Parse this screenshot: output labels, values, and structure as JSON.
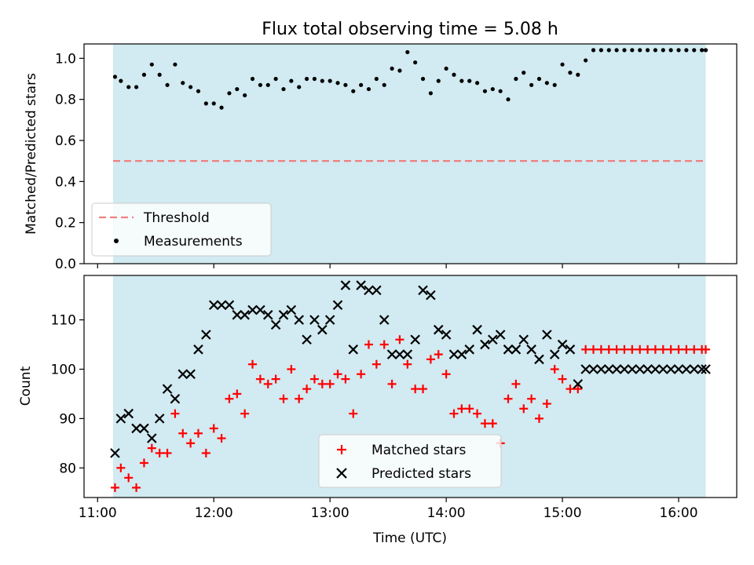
{
  "chart_data": [
    {
      "type": "scatter",
      "title": "Flux total observing time = 5.08 h",
      "ylabel": "Matched/Predicted stars",
      "xlabel": "",
      "ylim": [
        0.0,
        1.07
      ],
      "yticks": [
        "0.0",
        "0.2",
        "0.4",
        "0.6",
        "0.8",
        "1.0"
      ],
      "ytick_values": [
        0.0,
        0.2,
        0.4,
        0.6,
        0.8,
        1.0
      ],
      "xtick_labels_shown": false,
      "threshold": {
        "name": "Threshold",
        "value": 0.5,
        "color": "#f08080"
      },
      "observing_window": {
        "start": "11:08",
        "end": "16:14",
        "color": "#add8e6"
      },
      "legend_placement": "lower-left",
      "series": [
        {
          "name": "Measurements",
          "color": "#000000",
          "x": [
            "11:09",
            "11:12",
            "11:16",
            "11:20",
            "11:24",
            "11:28",
            "11:32",
            "11:36",
            "11:40",
            "11:44",
            "11:48",
            "11:52",
            "11:56",
            "12:00",
            "12:04",
            "12:08",
            "12:12",
            "12:16",
            "12:20",
            "12:24",
            "12:28",
            "12:32",
            "12:36",
            "12:40",
            "12:44",
            "12:48",
            "12:52",
            "12:56",
            "13:00",
            "13:04",
            "13:08",
            "13:12",
            "13:16",
            "13:20",
            "13:24",
            "13:28",
            "13:32",
            "13:36",
            "13:40",
            "13:44",
            "13:48",
            "13:52",
            "13:56",
            "14:00",
            "14:04",
            "14:08",
            "14:12",
            "14:16",
            "14:20",
            "14:24",
            "14:28",
            "14:32",
            "14:36",
            "14:40",
            "14:44",
            "14:48",
            "14:52",
            "14:56",
            "15:00",
            "15:04",
            "15:08",
            "15:12",
            "15:16",
            "15:20",
            "15:24",
            "15:28",
            "15:32",
            "15:36",
            "15:40",
            "15:44",
            "15:48",
            "15:52",
            "15:56",
            "16:00",
            "16:04",
            "16:08",
            "16:12",
            "16:14"
          ],
          "y": [
            0.91,
            0.89,
            0.86,
            0.86,
            0.92,
            0.97,
            0.92,
            0.87,
            0.97,
            0.88,
            0.86,
            0.84,
            0.78,
            0.78,
            0.76,
            0.83,
            0.85,
            0.82,
            0.9,
            0.87,
            0.87,
            0.9,
            0.85,
            0.89,
            0.86,
            0.9,
            0.9,
            0.89,
            0.89,
            0.88,
            0.87,
            0.84,
            0.87,
            0.85,
            0.9,
            0.87,
            0.95,
            0.94,
            1.03,
            0.98,
            0.9,
            0.83,
            0.89,
            0.95,
            0.92,
            0.89,
            0.89,
            0.88,
            0.84,
            0.85,
            0.84,
            0.8,
            0.9,
            0.93,
            0.87,
            0.9,
            0.88,
            0.87,
            0.97,
            0.93,
            0.92,
            0.99,
            1.04,
            1.04,
            1.04,
            1.04,
            1.04,
            1.04,
            1.04,
            1.04,
            1.04,
            1.04,
            1.04,
            1.04,
            1.04,
            1.04,
            1.04,
            1.04
          ]
        }
      ]
    },
    {
      "type": "scatter",
      "title": "",
      "ylabel": "Count",
      "xlabel": "Time (UTC)",
      "xlim": [
        "10:53",
        "16:30"
      ],
      "xticks": [
        "11:00",
        "12:00",
        "13:00",
        "14:00",
        "15:00",
        "16:00"
      ],
      "ylim": [
        74,
        119
      ],
      "yticks": [
        "80",
        "90",
        "100",
        "110"
      ],
      "ytick_values": [
        80,
        90,
        100,
        110
      ],
      "observing_window": {
        "start": "11:08",
        "end": "16:14",
        "color": "#add8e6"
      },
      "legend_placement": "lower-center",
      "series": [
        {
          "name": "Matched stars",
          "marker": "+",
          "color": "#ff0000",
          "x": [
            "11:09",
            "11:12",
            "11:16",
            "11:20",
            "11:24",
            "11:28",
            "11:32",
            "11:36",
            "11:40",
            "11:44",
            "11:48",
            "11:52",
            "11:56",
            "12:00",
            "12:04",
            "12:08",
            "12:12",
            "12:16",
            "12:20",
            "12:24",
            "12:28",
            "12:32",
            "12:36",
            "12:40",
            "12:44",
            "12:48",
            "12:52",
            "12:56",
            "13:00",
            "13:04",
            "13:08",
            "13:12",
            "13:16",
            "13:20",
            "13:24",
            "13:28",
            "13:32",
            "13:36",
            "13:40",
            "13:44",
            "13:48",
            "13:52",
            "13:56",
            "14:00",
            "14:04",
            "14:08",
            "14:12",
            "14:16",
            "14:20",
            "14:24",
            "14:28",
            "14:32",
            "14:36",
            "14:40",
            "14:44",
            "14:48",
            "14:52",
            "14:56",
            "15:00",
            "15:04",
            "15:08",
            "15:12",
            "15:16",
            "15:20",
            "15:24",
            "15:28",
            "15:32",
            "15:36",
            "15:40",
            "15:44",
            "15:48",
            "15:52",
            "15:56",
            "16:00",
            "16:04",
            "16:08",
            "16:12",
            "16:14"
          ],
          "y": [
            76,
            80,
            78,
            76,
            81,
            84,
            83,
            83,
            91,
            87,
            85,
            87,
            83,
            88,
            86,
            94,
            95,
            91,
            101,
            98,
            97,
            98,
            94,
            100,
            94,
            96,
            98,
            97,
            97,
            99,
            98,
            91,
            99,
            105,
            101,
            105,
            97,
            106,
            101,
            96,
            96,
            102,
            103,
            99,
            91,
            92,
            92,
            91,
            89,
            89,
            85,
            94,
            97,
            92,
            94,
            90,
            93,
            100,
            98,
            96,
            96,
            104,
            104,
            104,
            104,
            104,
            104,
            104,
            104,
            104,
            104,
            104,
            104,
            104,
            104,
            104,
            104,
            104
          ]
        },
        {
          "name": "Predicted stars",
          "marker": "x",
          "color": "#000000",
          "x": [
            "11:09",
            "11:12",
            "11:16",
            "11:20",
            "11:24",
            "11:28",
            "11:32",
            "11:36",
            "11:40",
            "11:44",
            "11:48",
            "11:52",
            "11:56",
            "12:00",
            "12:04",
            "12:08",
            "12:12",
            "12:16",
            "12:20",
            "12:24",
            "12:28",
            "12:32",
            "12:36",
            "12:40",
            "12:44",
            "12:48",
            "12:52",
            "12:56",
            "13:00",
            "13:04",
            "13:08",
            "13:12",
            "13:16",
            "13:20",
            "13:24",
            "13:28",
            "13:32",
            "13:36",
            "13:40",
            "13:44",
            "13:48",
            "13:52",
            "13:56",
            "14:00",
            "14:04",
            "14:08",
            "14:12",
            "14:16",
            "14:20",
            "14:24",
            "14:28",
            "14:32",
            "14:36",
            "14:40",
            "14:44",
            "14:48",
            "14:52",
            "14:56",
            "15:00",
            "15:04",
            "15:08",
            "15:12",
            "15:16",
            "15:20",
            "15:24",
            "15:28",
            "15:32",
            "15:36",
            "15:40",
            "15:44",
            "15:48",
            "15:52",
            "15:56",
            "16:00",
            "16:04",
            "16:08",
            "16:12",
            "16:14"
          ],
          "y": [
            83,
            90,
            91,
            88,
            88,
            86,
            90,
            96,
            94,
            99,
            99,
            104,
            107,
            113,
            113,
            113,
            111,
            111,
            112,
            112,
            111,
            109,
            111,
            112,
            110,
            106,
            110,
            108,
            110,
            113,
            117,
            104,
            117,
            116,
            116,
            110,
            103,
            103,
            103,
            106,
            116,
            115,
            108,
            107,
            103,
            103,
            104,
            108,
            105,
            106,
            107,
            104,
            104,
            106,
            104,
            102,
            107,
            103,
            105,
            104,
            97,
            100,
            100,
            100,
            100,
            100,
            100,
            100,
            100,
            100,
            100,
            100,
            100,
            100,
            100,
            100,
            100,
            100
          ]
        }
      ]
    }
  ]
}
